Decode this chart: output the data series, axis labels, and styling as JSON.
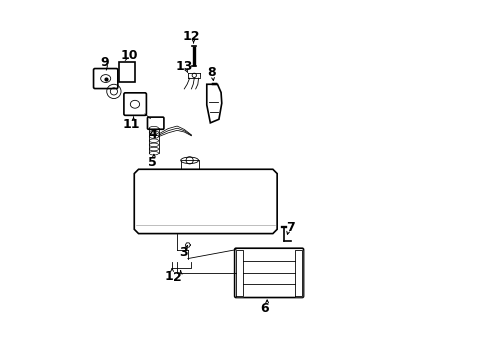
{
  "bg_color": "#ffffff",
  "line_color": "#000000",
  "line_width": 1.2,
  "thin_line": 0.6,
  "label_fontsize": 9
}
